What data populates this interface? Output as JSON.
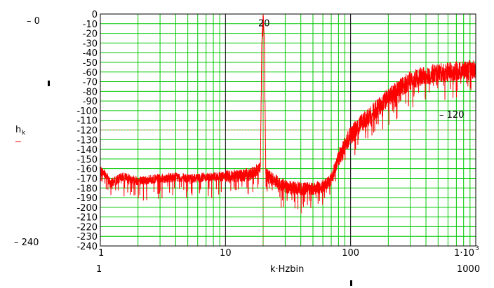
{
  "chart_data": {
    "type": "line",
    "xscale": "log",
    "yscale": "linear",
    "xlim": [
      1,
      1000
    ],
    "ylim": [
      -240,
      0
    ],
    "grid": true,
    "colors": {
      "grid": "#00c800",
      "major_grid": "#000000",
      "trace": "#ff0000",
      "marker": "#b06010"
    },
    "y_ticks": [
      "0",
      "-10",
      "-20",
      "-30",
      "-40",
      "-50",
      "-60",
      "-70",
      "-80",
      "-90",
      "-100",
      "-110",
      "-120",
      "-130",
      "-140",
      "-150",
      "-160",
      "-170",
      "-180",
      "-190",
      "-200",
      "-210",
      "-220",
      "-230",
      "-240"
    ],
    "x_ticks": [
      {
        "value": 1,
        "label": "1"
      },
      {
        "value": 10,
        "label": "10"
      },
      {
        "value": 100,
        "label": "100"
      },
      {
        "value": 1000,
        "label": "1·10",
        "exp": "3"
      }
    ],
    "xlabel": "k·Hzbin",
    "ylabel": "h",
    "ylabel_sub": "k",
    "y_top_label": "– 0",
    "y_bottom_label": "– 240",
    "x_left_label": "1",
    "x_right_label": "1000",
    "annotations": [
      {
        "text": "20",
        "x": 20,
        "y": -9
      },
      {
        "text": "– 120",
        "x": 700,
        "y": -118
      }
    ],
    "markers": {
      "vertical_x": 20,
      "horizontal_y": -120
    },
    "series": [
      {
        "values_envelope": [
          {
            "x": 1.0,
            "y": -162
          },
          {
            "x": 1.1,
            "y": -165
          },
          {
            "x": 1.2,
            "y": -175
          },
          {
            "x": 1.5,
            "y": -168
          },
          {
            "x": 2,
            "y": -172
          },
          {
            "x": 3,
            "y": -170
          },
          {
            "x": 4,
            "y": -168
          },
          {
            "x": 5,
            "y": -170
          },
          {
            "x": 7,
            "y": -168
          },
          {
            "x": 10,
            "y": -168
          },
          {
            "x": 14,
            "y": -166
          },
          {
            "x": 17,
            "y": -164
          },
          {
            "x": 19,
            "y": -158
          },
          {
            "x": 19.5,
            "y": -30
          },
          {
            "x": 20,
            "y": 0
          },
          {
            "x": 20.5,
            "y": -30
          },
          {
            "x": 21,
            "y": -165
          },
          {
            "x": 25,
            "y": -172
          },
          {
            "x": 30,
            "y": -178
          },
          {
            "x": 40,
            "y": -180
          },
          {
            "x": 50,
            "y": -180
          },
          {
            "x": 60,
            "y": -178
          },
          {
            "x": 70,
            "y": -170
          },
          {
            "x": 80,
            "y": -148
          },
          {
            "x": 90,
            "y": -135
          },
          {
            "x": 100,
            "y": -125
          },
          {
            "x": 130,
            "y": -108
          },
          {
            "x": 170,
            "y": -95
          },
          {
            "x": 200,
            "y": -85
          },
          {
            "x": 250,
            "y": -75
          },
          {
            "x": 300,
            "y": -68
          },
          {
            "x": 400,
            "y": -62
          },
          {
            "x": 500,
            "y": -60
          },
          {
            "x": 700,
            "y": -58
          },
          {
            "x": 1000,
            "y": -56
          }
        ]
      }
    ]
  }
}
